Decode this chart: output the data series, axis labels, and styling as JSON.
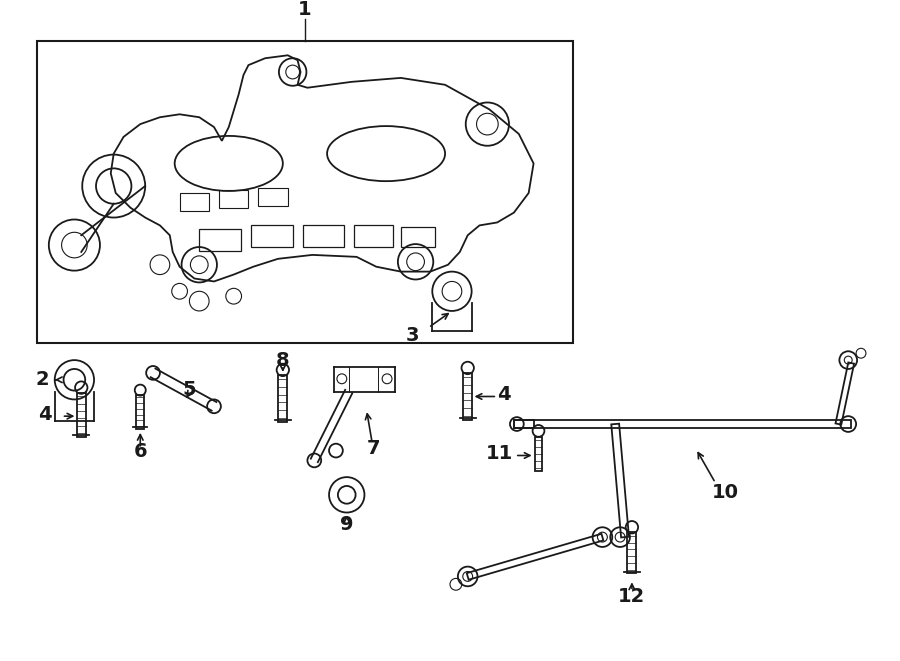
{
  "bg_color": "#ffffff",
  "line_color": "#1a1a1a",
  "fig_w": 9.0,
  "fig_h": 6.61,
  "dpi": 100
}
